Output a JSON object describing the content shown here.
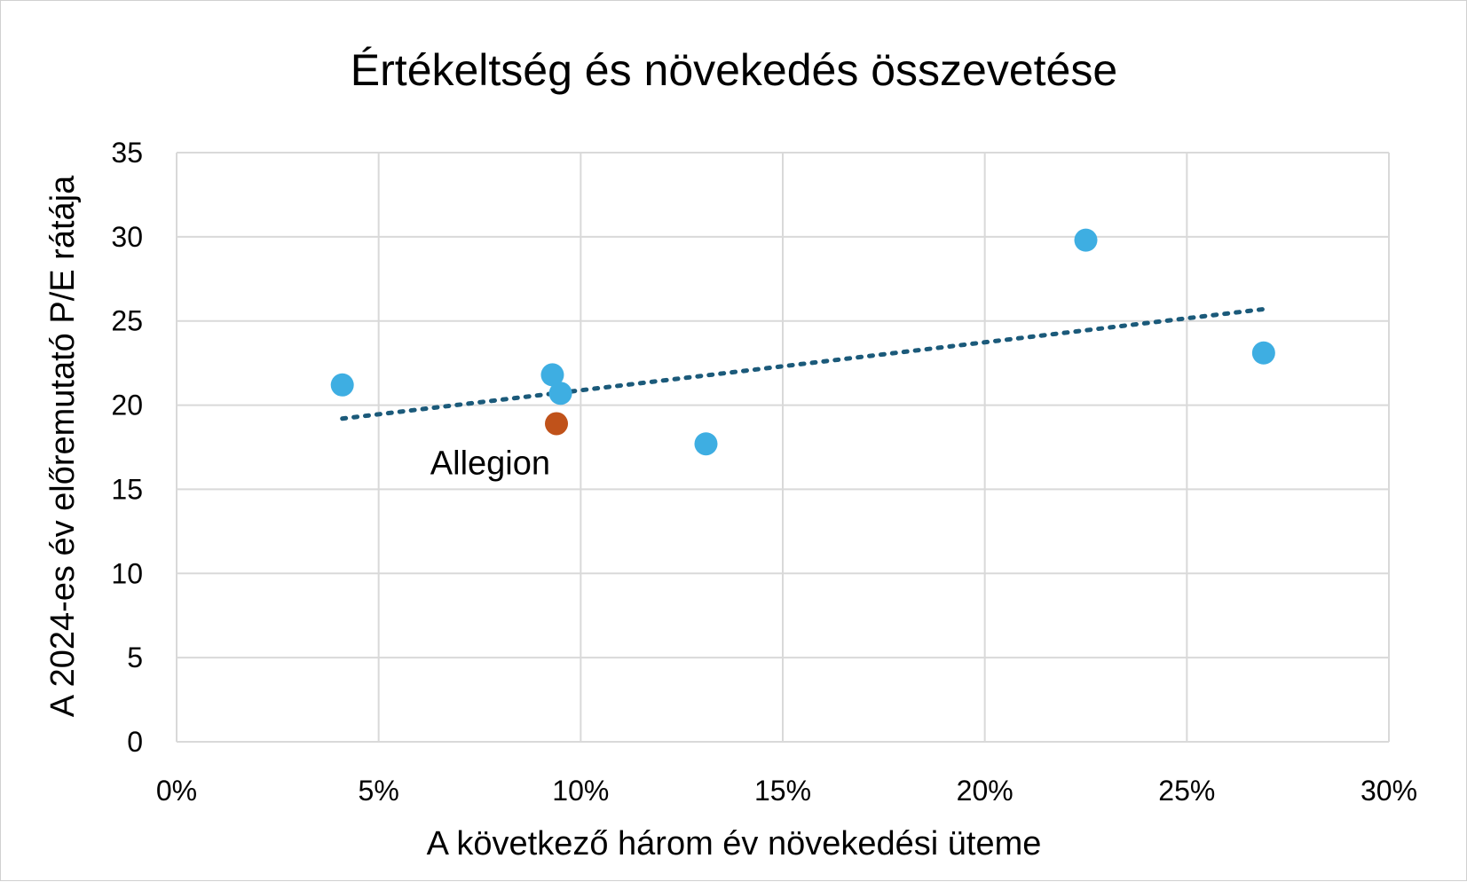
{
  "chart_data": {
    "type": "scatter",
    "title": "Értékeltség és növekedés összevetése",
    "xlabel": "A következő három év növekedési üteme",
    "ylabel": "A 2024-es év előremutató P/E rátája",
    "xlim": [
      0,
      0.3
    ],
    "ylim": [
      0,
      35
    ],
    "x_ticks": [
      0,
      0.05,
      0.1,
      0.15,
      0.2,
      0.25,
      0.3
    ],
    "x_tick_labels": [
      "0%",
      "5%",
      "10%",
      "15%",
      "20%",
      "25%",
      "30%"
    ],
    "y_ticks": [
      0,
      5,
      10,
      15,
      20,
      25,
      30,
      35
    ],
    "y_tick_labels": [
      "0",
      "5",
      "10",
      "15",
      "20",
      "25",
      "30",
      "35"
    ],
    "grid": true,
    "legend": "none",
    "series": [
      {
        "color": "#3eaee2",
        "points": [
          {
            "x": 0.041,
            "y": 21.2
          },
          {
            "x": 0.093,
            "y": 21.8
          },
          {
            "x": 0.095,
            "y": 20.7
          },
          {
            "x": 0.131,
            "y": 17.7
          },
          {
            "x": 0.225,
            "y": 29.8
          },
          {
            "x": 0.269,
            "y": 23.1
          }
        ]
      },
      {
        "color": "#c0521a",
        "points": [
          {
            "x": 0.094,
            "y": 18.9
          }
        ]
      }
    ],
    "annotations": [
      {
        "text": "Allegion",
        "x": 0.094,
        "y": 18.9
      }
    ],
    "trendline": {
      "style": "dotted",
      "color": "#1b5a7a",
      "from": {
        "x": 0.041,
        "y": 19.2
      },
      "to": {
        "x": 0.269,
        "y": 25.7
      }
    }
  }
}
